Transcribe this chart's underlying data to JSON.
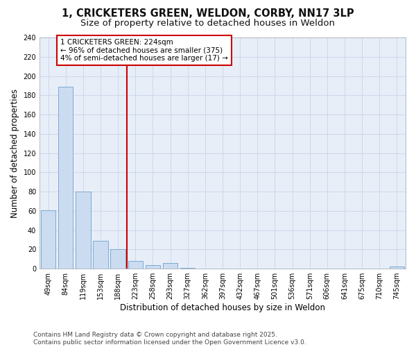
{
  "title": "1, CRICKETERS GREEN, WELDON, CORBY, NN17 3LP",
  "subtitle": "Size of property relative to detached houses in Weldon",
  "xlabel": "Distribution of detached houses by size in Weldon",
  "ylabel": "Number of detached properties",
  "categories": [
    "49sqm",
    "84sqm",
    "119sqm",
    "153sqm",
    "188sqm",
    "223sqm",
    "258sqm",
    "293sqm",
    "327sqm",
    "362sqm",
    "397sqm",
    "432sqm",
    "467sqm",
    "501sqm",
    "536sqm",
    "571sqm",
    "606sqm",
    "641sqm",
    "675sqm",
    "710sqm",
    "745sqm"
  ],
  "values": [
    61,
    189,
    80,
    29,
    20,
    8,
    4,
    6,
    1,
    0,
    0,
    0,
    0,
    0,
    0,
    0,
    0,
    0,
    0,
    0,
    2
  ],
  "bar_color": "#ccdcf0",
  "bar_edge_color": "#7aaad0",
  "subject_bar_index": 5,
  "subject_line_color": "#cc0000",
  "annotation_text": "1 CRICKETERS GREEN: 224sqm\n← 96% of detached houses are smaller (375)\n4% of semi-detached houses are larger (17) →",
  "annotation_box_color": "#cc0000",
  "ylim": [
    0,
    240
  ],
  "yticks": [
    0,
    20,
    40,
    60,
    80,
    100,
    120,
    140,
    160,
    180,
    200,
    220,
    240
  ],
  "grid_color": "#c8d4e8",
  "bg_color": "#e8eef8",
  "footer": "Contains HM Land Registry data © Crown copyright and database right 2025.\nContains public sector information licensed under the Open Government Licence v3.0.",
  "title_fontsize": 10.5,
  "subtitle_fontsize": 9.5,
  "axis_label_fontsize": 8.5,
  "tick_fontsize": 7,
  "footer_fontsize": 6.5,
  "annotation_fontsize": 7.5
}
